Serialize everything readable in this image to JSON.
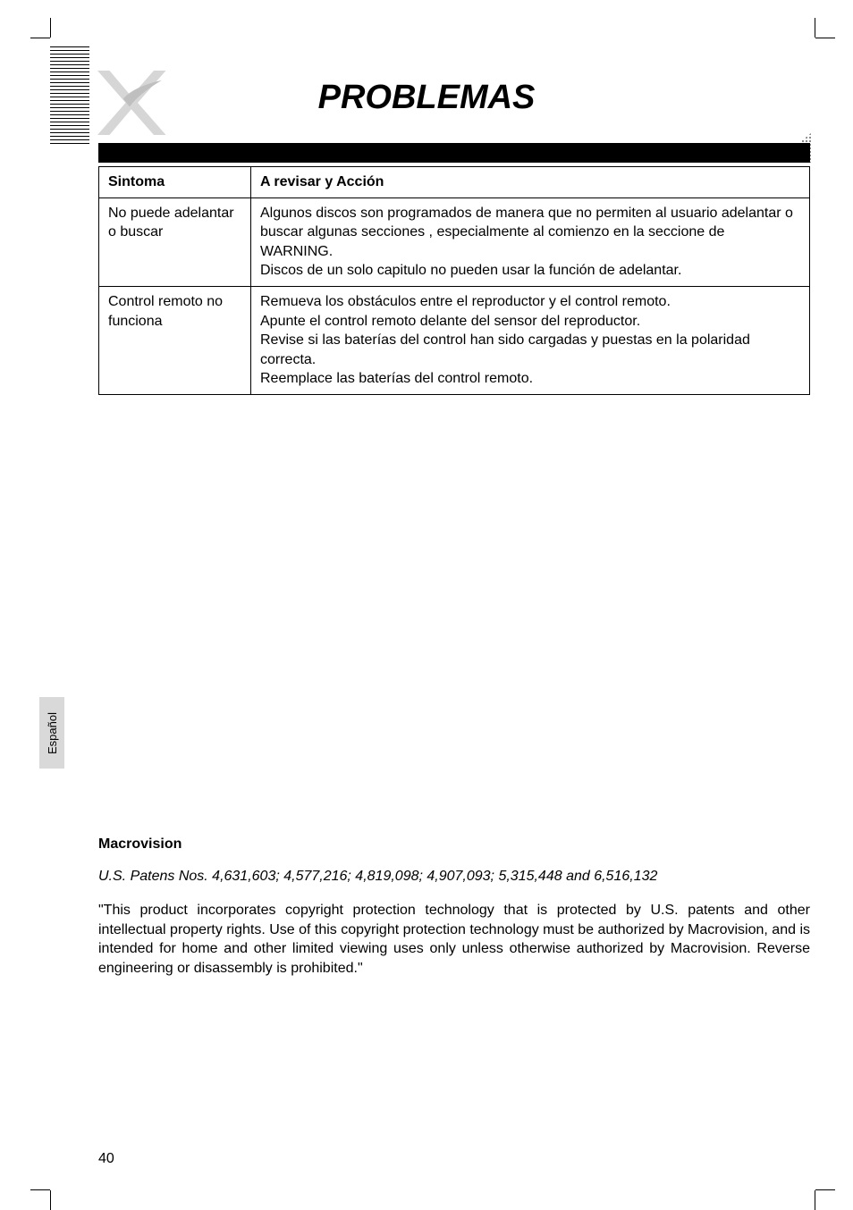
{
  "page": {
    "title": "PROBLEMAS",
    "page_number": "40",
    "language_tab": "Español"
  },
  "table": {
    "headers": {
      "symptom": "Sintoma",
      "action": "A revisar y  Acción"
    },
    "rows": [
      {
        "symptom": "No puede adelantar o buscar",
        "action": "Algunos discos son programados de manera que no permiten al usuario adelantar o buscar algunas secciones , especialmente al comienzo en la seccione de  WARNING.\nDiscos de un solo capitulo no pueden usar la función de adelantar."
      },
      {
        "symptom": "Control remoto no funciona",
        "action": "Remueva los obstáculos entre el reproductor y el control remoto.\nApunte el control remoto delante  del sensor del reproductor.\nRevise si las baterías del control han sido cargadas y puestas en la polaridad correcta.\nReemplace las baterías del control remoto."
      }
    ]
  },
  "macrovision": {
    "heading": "Macrovision",
    "patents": "U.S. Patens Nos. 4,631,603; 4,577,216; 4,819,098; 4,907,093; 5,315,448 and 6,516,132",
    "body": "\"This product incorporates copyright protection technology that is protected by U.S. patents and other intellectual property rights. Use of this copyright protection technology must be authorized by Macrovision, and is intended for home and other limited viewing uses only unless otherwise authorized by Macrovision. Reverse engineering or disassembly is prohibited.\""
  },
  "colors": {
    "text": "#000000",
    "background": "#ffffff",
    "tab_bg": "#d9d9d9",
    "border": "#000000"
  },
  "typography": {
    "title_fontsize": 38,
    "title_style": "bold italic",
    "body_fontsize": 16,
    "font_family": "Arial"
  }
}
